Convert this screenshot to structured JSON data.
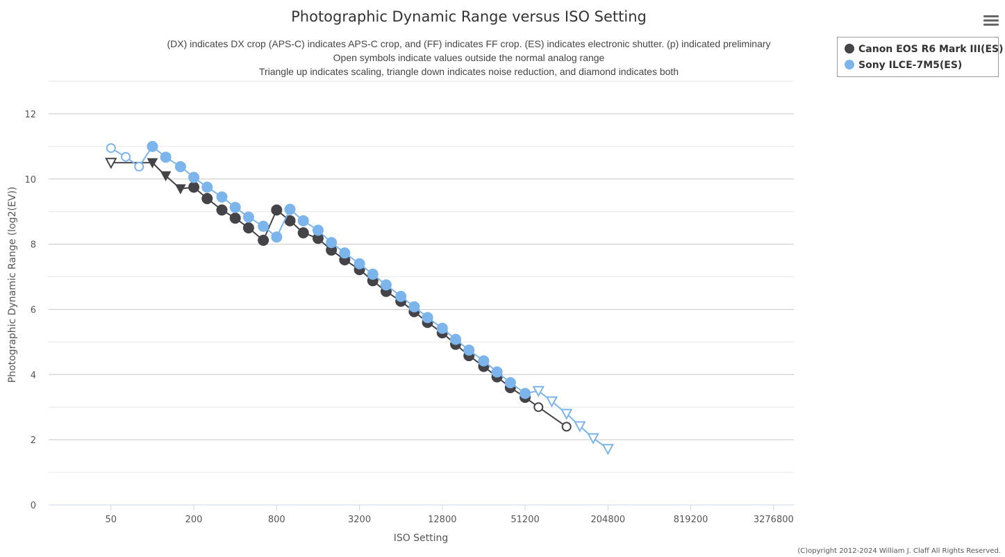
{
  "chart_data": {
    "type": "line",
    "title": "Photographic Dynamic Range versus ISO Setting",
    "subtitle": [
      "(DX) indicates DX crop (APS-C) indicates APS-C crop, and (FF) indicates FF crop. (ES) indicates electronic shutter. (p) indicated preliminary",
      "Open symbols indicate values outside the normal analog range",
      "Triangle up indicates scaling, triangle down indicates noise reduction, and diamond indicates both"
    ],
    "xlabel": "ISO Setting",
    "ylabel": "Photographic Dynamic Range (log2(EV))",
    "xscale": "log2",
    "xlim": [
      17.6,
      4600000
    ],
    "ylim": [
      0,
      13
    ],
    "xticks": [
      50,
      200,
      800,
      3200,
      12800,
      51200,
      204800,
      819200,
      3276800
    ],
    "yticks": [
      0,
      2,
      4,
      6,
      8,
      10,
      12
    ],
    "grid": true,
    "legend_position": "top-right",
    "series": [
      {
        "name": "Canon EOS R6 Mark III(ES)",
        "color": "#434348",
        "points": [
          [
            50,
            10.5,
            "triangle-down-open"
          ],
          [
            100,
            10.5,
            "triangle-down"
          ],
          [
            125,
            10.1,
            "triangle-down"
          ],
          [
            160,
            9.7,
            "triangle-down"
          ],
          [
            200,
            9.75,
            "circle"
          ],
          [
            250,
            9.4,
            "circle"
          ],
          [
            320,
            9.05,
            "circle"
          ],
          [
            400,
            8.8,
            "circle"
          ],
          [
            500,
            8.5,
            "circle"
          ],
          [
            640,
            8.12,
            "circle"
          ],
          [
            800,
            9.05,
            "circle"
          ],
          [
            1000,
            8.72,
            "circle"
          ],
          [
            1250,
            8.35,
            "circle"
          ],
          [
            1600,
            8.18,
            "circle"
          ],
          [
            2000,
            7.82,
            "circle"
          ],
          [
            2500,
            7.52,
            "circle"
          ],
          [
            3200,
            7.22,
            "circle"
          ],
          [
            4000,
            6.88,
            "circle"
          ],
          [
            5000,
            6.55,
            "circle"
          ],
          [
            6400,
            6.25,
            "circle"
          ],
          [
            8000,
            5.93,
            "circle"
          ],
          [
            10000,
            5.6,
            "circle"
          ],
          [
            12800,
            5.28,
            "circle"
          ],
          [
            16000,
            4.93,
            "circle"
          ],
          [
            20000,
            4.58,
            "circle"
          ],
          [
            25600,
            4.25,
            "circle"
          ],
          [
            32000,
            3.93,
            "circle"
          ],
          [
            40000,
            3.6,
            "circle"
          ],
          [
            51200,
            3.3,
            "circle"
          ],
          [
            64000,
            3.0,
            "circle-open"
          ],
          [
            102400,
            2.4,
            "circle-open"
          ]
        ]
      },
      {
        "name": "Sony ILCE-7M5(ES)",
        "color": "#7cb5ec",
        "points": [
          [
            50,
            10.95,
            "circle-open"
          ],
          [
            64,
            10.68,
            "circle-open"
          ],
          [
            80,
            10.38,
            "circle-open"
          ],
          [
            100,
            11.0,
            "circle"
          ],
          [
            125,
            10.67,
            "circle"
          ],
          [
            160,
            10.38,
            "circle"
          ],
          [
            200,
            10.05,
            "circle"
          ],
          [
            250,
            9.75,
            "circle"
          ],
          [
            320,
            9.45,
            "circle"
          ],
          [
            400,
            9.13,
            "circle"
          ],
          [
            500,
            8.83,
            "circle"
          ],
          [
            640,
            8.55,
            "circle"
          ],
          [
            800,
            8.22,
            "circle"
          ],
          [
            1000,
            9.07,
            "circle"
          ],
          [
            1250,
            8.72,
            "circle"
          ],
          [
            1600,
            8.43,
            "circle"
          ],
          [
            2000,
            8.05,
            "circle"
          ],
          [
            2500,
            7.73,
            "circle"
          ],
          [
            3200,
            7.4,
            "circle"
          ],
          [
            4000,
            7.08,
            "circle"
          ],
          [
            5000,
            6.75,
            "circle"
          ],
          [
            6400,
            6.4,
            "circle"
          ],
          [
            8000,
            6.08,
            "circle"
          ],
          [
            10000,
            5.75,
            "circle"
          ],
          [
            12800,
            5.42,
            "circle"
          ],
          [
            16000,
            5.08,
            "circle"
          ],
          [
            20000,
            4.75,
            "circle"
          ],
          [
            25600,
            4.42,
            "circle"
          ],
          [
            32000,
            4.08,
            "circle"
          ],
          [
            40000,
            3.75,
            "circle"
          ],
          [
            51200,
            3.42,
            "circle"
          ],
          [
            64000,
            3.5,
            "triangle-down-open"
          ],
          [
            80000,
            3.18,
            "triangle-down-open"
          ],
          [
            102400,
            2.8,
            "triangle-down-open"
          ],
          [
            128000,
            2.42,
            "triangle-down-open"
          ],
          [
            160000,
            2.05,
            "triangle-down-open"
          ],
          [
            204800,
            1.72,
            "triangle-down-open"
          ]
        ]
      }
    ]
  },
  "menu_icon": "hamburger-menu-icon",
  "copyright": "(C)opyright 2012-2024 William J. Claff All Rights Reserved."
}
